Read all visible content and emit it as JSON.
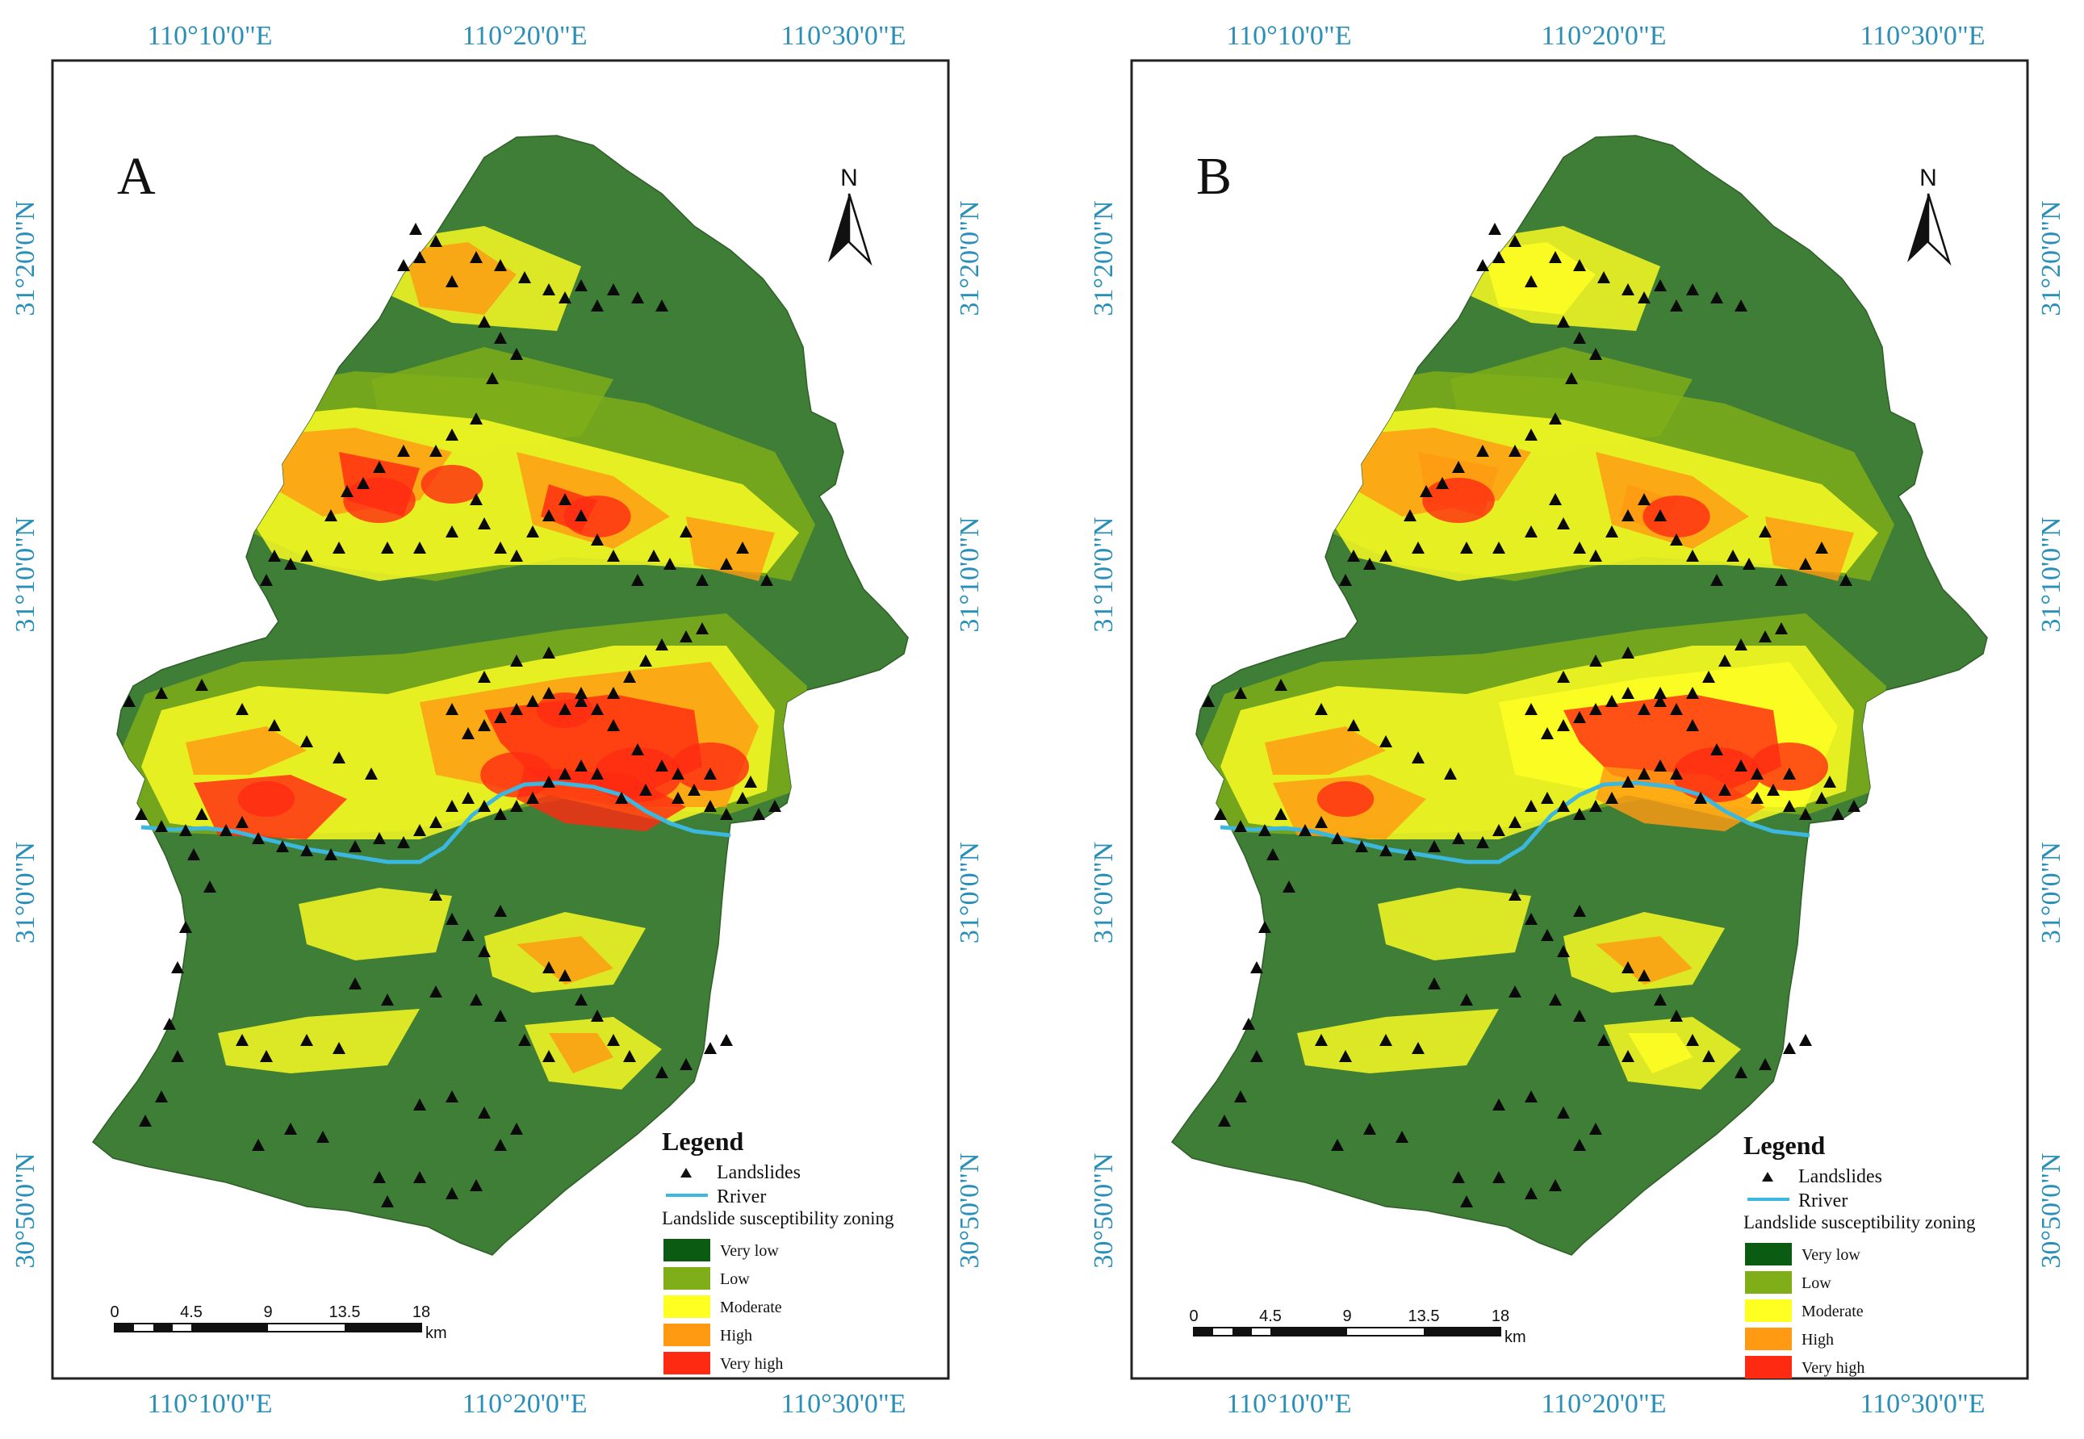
{
  "panels": [
    {
      "id": "A",
      "letter": "A",
      "top_ticks": [
        "110°10'0\"E",
        "110°20'0\"E",
        "110°30'0\"E"
      ],
      "bottom_ticks": [
        "110°10'0\"E",
        "110°20'0\"E",
        "110°30'0\"E"
      ],
      "left_ticks": [
        "31°20'0\"N",
        "31°10'0\"N",
        "31°0'0\"N",
        "30°50'0\"N"
      ],
      "right_ticks": [
        "31°20'0\"N",
        "31°10'0\"N",
        "31°0'0\"N",
        "30°50'0\"N"
      ],
      "north_label": "N",
      "scale_labels": [
        "0",
        "4.5",
        "9",
        "13.5",
        "18"
      ],
      "scale_unit": "km",
      "legend": {
        "title": "Legend",
        "landslides": "Landslides",
        "river": "Rriver",
        "zoning_title": "Landslide susceptibility zoning",
        "classes": [
          "Very low",
          "Low",
          "Moderate",
          "High",
          "Very high"
        ]
      }
    },
    {
      "id": "B",
      "letter": "B",
      "top_ticks": [
        "110°10'0\"E",
        "110°20'0\"E",
        "110°30'0\"E"
      ],
      "bottom_ticks": [
        "110°10'0\"E",
        "110°20'0\"E",
        "110°30'0\"E"
      ],
      "left_ticks": [
        "31°20'0\"N",
        "31°10'0\"N",
        "31°0'0\"N",
        "30°50'0\"N"
      ],
      "right_ticks": [
        "31°20'0\"N",
        "31°10'0\"N",
        "31°0'0\"N",
        "30°50'0\"N"
      ],
      "north_label": "N",
      "scale_labels": [
        "0",
        "4.5",
        "9",
        "13.5",
        "18"
      ],
      "scale_unit": "km",
      "legend": {
        "title": "Legend",
        "landslides": "Landslides",
        "river": "Rriver",
        "zoning_title": "Landslide susceptibility zoning",
        "classes": [
          "Very low",
          "Low",
          "Moderate",
          "High",
          "Very high"
        ]
      }
    }
  ],
  "class_colors": [
    "#0b5c12",
    "#7fae18",
    "#ffff22",
    "#ff9a12",
    "#ff2a12"
  ],
  "land_color": "#3f7e36",
  "river_color": "#3cb7e0",
  "coord_color": "#2a8fb8"
}
